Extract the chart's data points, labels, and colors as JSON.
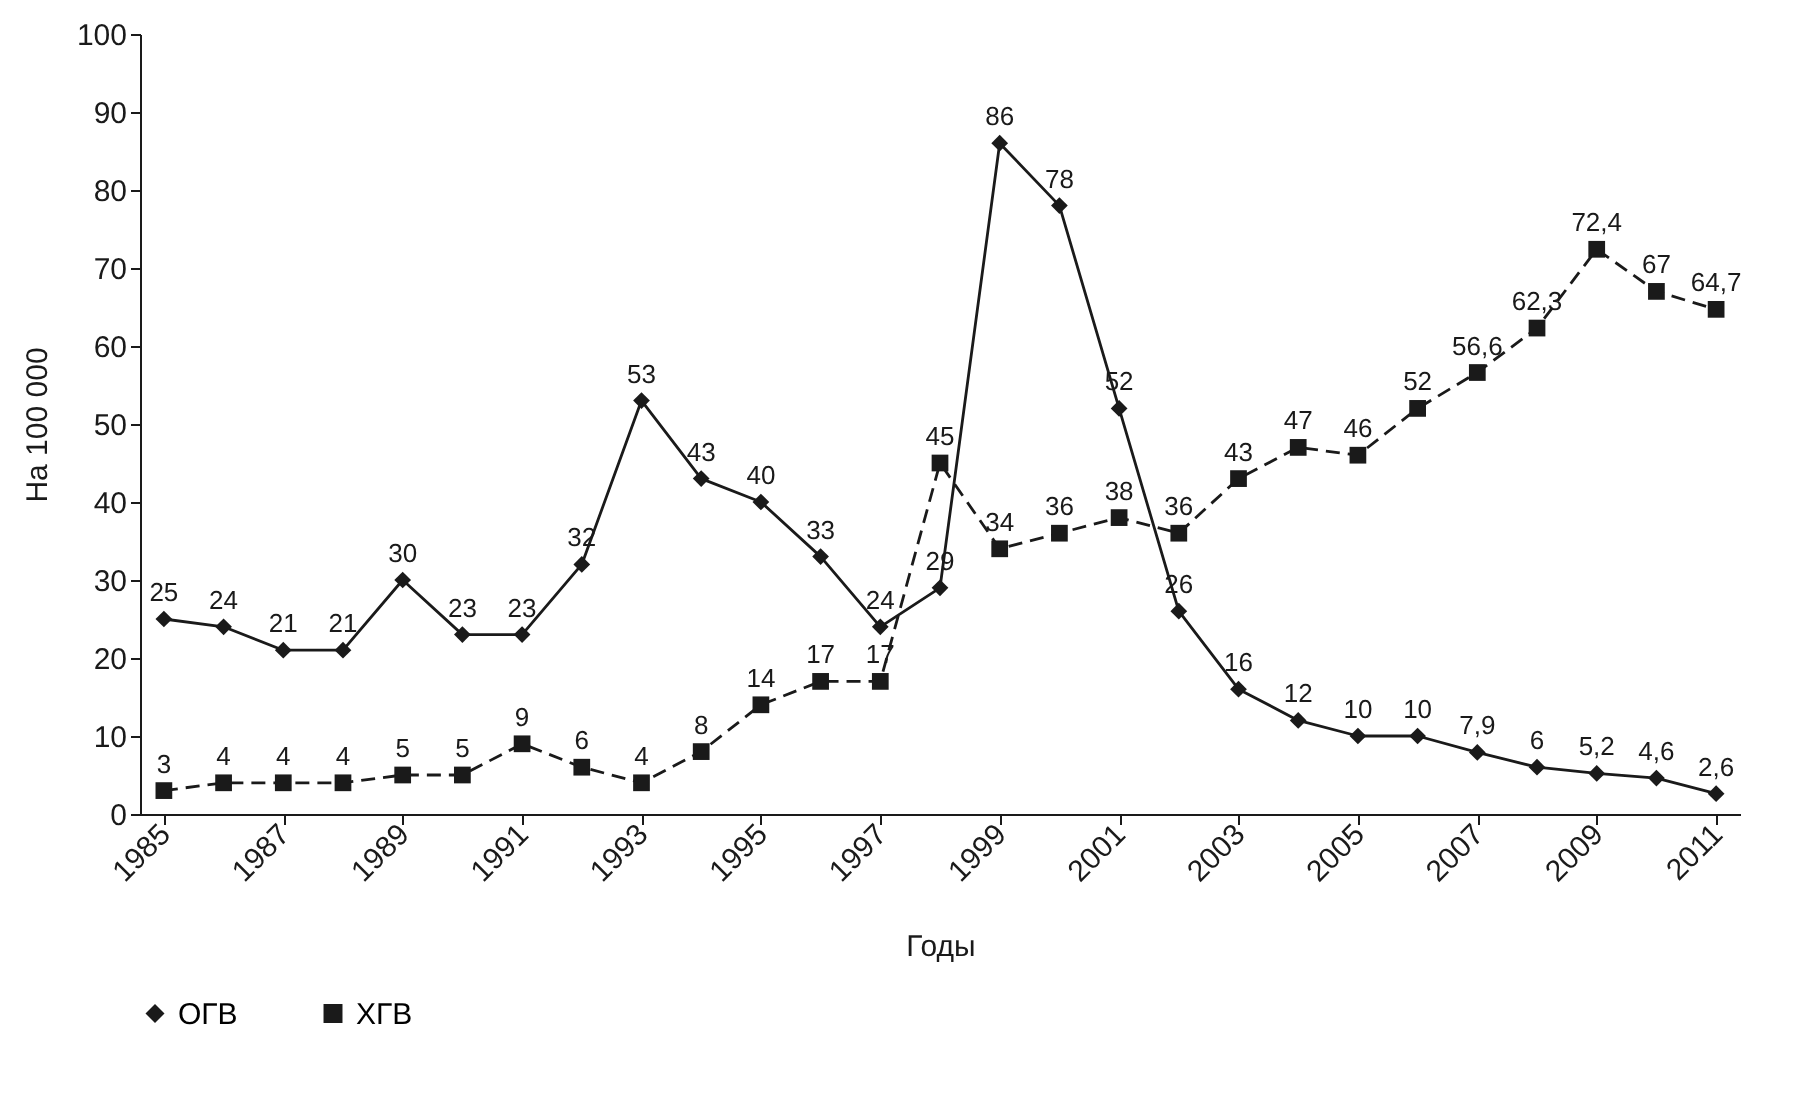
{
  "chart_data": {
    "type": "line",
    "xlabel": "Годы",
    "ylabel": "На 100 000",
    "x": [
      1985,
      1986,
      1987,
      1988,
      1989,
      1990,
      1991,
      1992,
      1993,
      1994,
      1995,
      1996,
      1997,
      1998,
      1999,
      2000,
      2001,
      2002,
      2003,
      2004,
      2005,
      2006,
      2007,
      2008,
      2009,
      2010,
      2011
    ],
    "series": [
      {
        "name": "ОГВ",
        "color": "#1a1a1a",
        "marker": "diamond",
        "line_style": "solid",
        "values": [
          25,
          24,
          21,
          21,
          30,
          23,
          23,
          32,
          53,
          43,
          40,
          33,
          24,
          29,
          86,
          78,
          52,
          26,
          16,
          12,
          10,
          10,
          7.9,
          6,
          5.2,
          4.6,
          2.6
        ],
        "value_labels": [
          "25",
          "24",
          "21",
          "21",
          "30",
          "23",
          "23",
          "32",
          "53",
          "43",
          "40",
          "33",
          "24",
          "29",
          "86",
          "78",
          "52",
          "26",
          "16",
          "12",
          "10",
          "10",
          "7,9",
          "6",
          "5,2",
          "4,6",
          "2,6"
        ]
      },
      {
        "name": "ХГВ",
        "color": "#1a1a1a",
        "marker": "square",
        "line_style": "dashed",
        "values": [
          3,
          4,
          4,
          4,
          5,
          5,
          9,
          6,
          4,
          8,
          14,
          17,
          17,
          45,
          34,
          36,
          38,
          36,
          43,
          47,
          46,
          52,
          56.6,
          62.3,
          72.4,
          67,
          64.7
        ],
        "value_labels": [
          "3",
          "4",
          "4",
          "4",
          "5",
          "5",
          "9",
          "6",
          "4",
          "8",
          "14",
          "17",
          "17",
          "45",
          "34",
          "36",
          "38",
          "36",
          "43",
          "47",
          "46",
          "52",
          "56,6",
          "62,3",
          "72,4",
          "67",
          "64,7"
        ]
      }
    ],
    "xlim": [
      1984.6,
      2011.4
    ],
    "xticks": [
      1985,
      1987,
      1989,
      1991,
      1993,
      1995,
      1997,
      1999,
      2001,
      2003,
      2005,
      2007,
      2009,
      2011
    ],
    "ylim": [
      0,
      100
    ],
    "yticks": [
      0,
      10,
      20,
      30,
      40,
      50,
      60,
      70,
      80,
      90,
      100
    ],
    "grid": false,
    "legend": "bottom"
  }
}
